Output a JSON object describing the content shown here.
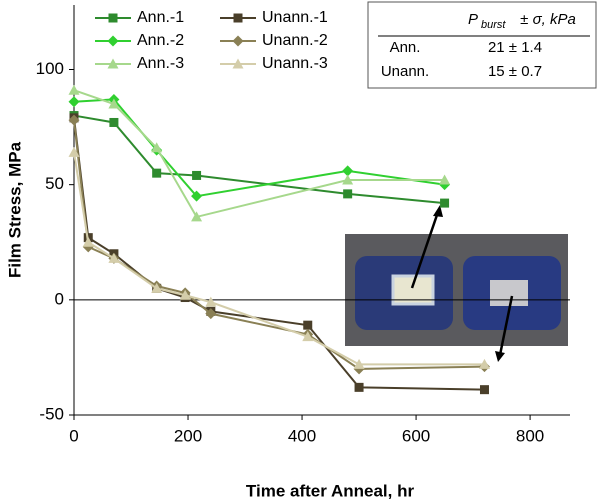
{
  "chart_data": {
    "type": "line",
    "xlabel": "Time after Anneal, hr",
    "ylabel": "Film Stress, MPa",
    "xlim": [
      0,
      870
    ],
    "ylim": [
      -50,
      128
    ],
    "xticks": [
      0,
      200,
      400,
      600,
      800
    ],
    "yticks": [
      -50,
      0,
      50,
      100
    ],
    "reference_line": 0,
    "series": [
      {
        "name": "Ann.-1",
        "color": "#2e8b2e",
        "marker": "square",
        "x": [
          0,
          70,
          145,
          215,
          480,
          650
        ],
        "values": [
          80,
          77,
          55,
          54,
          46,
          42
        ]
      },
      {
        "name": "Ann.-2",
        "color": "#30d030",
        "marker": "diamond",
        "x": [
          0,
          70,
          145,
          215,
          480,
          650
        ],
        "values": [
          86,
          87,
          65,
          45,
          56,
          50
        ]
      },
      {
        "name": "Ann.-3",
        "color": "#a6d88c",
        "marker": "triangle",
        "x": [
          0,
          70,
          145,
          215,
          480,
          650
        ],
        "values": [
          91,
          85,
          66,
          36,
          52,
          52
        ]
      },
      {
        "name": "Unann.-1",
        "color": "#4a3f2a",
        "marker": "square",
        "x": [
          0,
          25,
          70,
          145,
          195,
          240,
          410,
          500,
          720
        ],
        "values": [
          79,
          27,
          20,
          5,
          1,
          -5,
          -11,
          -38,
          -39
        ]
      },
      {
        "name": "Unann.-2",
        "color": "#8a8055",
        "marker": "diamond",
        "x": [
          0,
          25,
          70,
          145,
          195,
          240,
          410,
          500,
          720
        ],
        "values": [
          78,
          23,
          18,
          6,
          3,
          -6,
          -15,
          -30,
          -29
        ]
      },
      {
        "name": "Unann.-3",
        "color": "#d4cdaa",
        "marker": "triangle",
        "x": [
          0,
          25,
          70,
          145,
          195,
          240,
          410,
          500,
          720
        ],
        "values": [
          64,
          25,
          18,
          5,
          2,
          -1,
          -16,
          -28,
          -28
        ]
      }
    ],
    "table": {
      "header_symbol": "P",
      "header_subscript": "burst",
      "header_rest": " ± σ, kPa",
      "rows": [
        [
          "Ann.",
          "21 ± 1.4"
        ],
        [
          "Unann.",
          "15 ± 0.7"
        ]
      ]
    }
  }
}
